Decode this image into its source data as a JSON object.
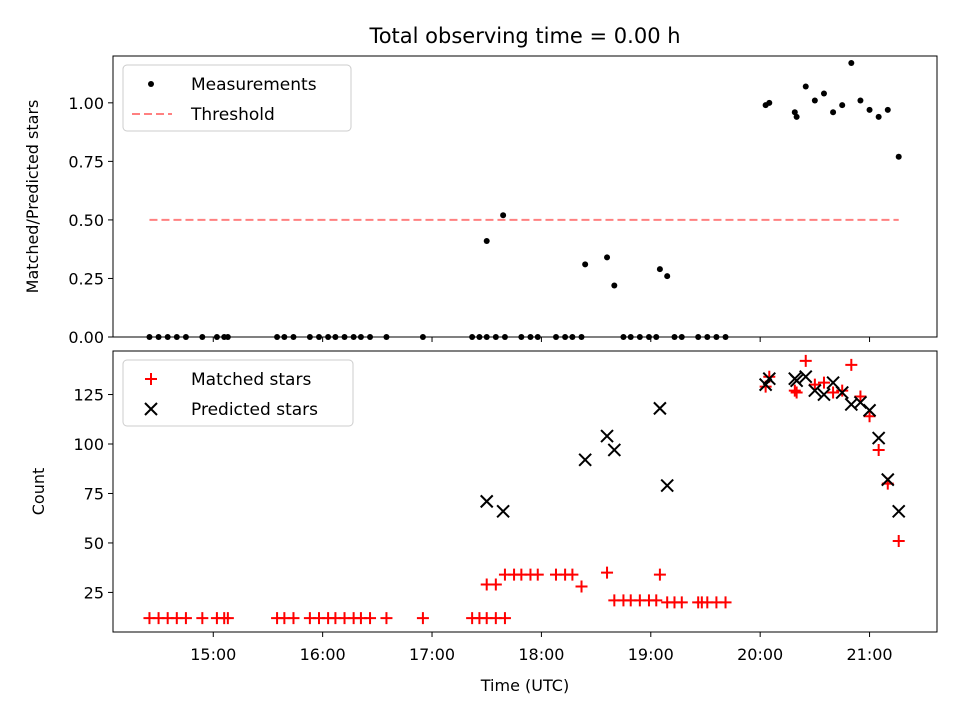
{
  "title": "Total observing time = 0.00 h",
  "chart_data": [
    {
      "type": "scatter",
      "ylabel": "Matched/Predicted stars",
      "ylim": [
        0,
        1.2
      ],
      "yticks": [
        0.0,
        0.25,
        0.5,
        0.75,
        1.0
      ],
      "yticklabels": [
        "0.00",
        "0.25",
        "0.50",
        "0.75",
        "1.00"
      ],
      "legend_position": "top-left",
      "series": [
        {
          "name": "Measurements",
          "marker": "dot",
          "color": "#000000",
          "points": [
            [
              "14:25",
              0
            ],
            [
              "14:30",
              0
            ],
            [
              "14:35",
              0
            ],
            [
              "14:40",
              0
            ],
            [
              "14:45",
              0
            ],
            [
              "14:54",
              0
            ],
            [
              "15:02",
              0
            ],
            [
              "15:06",
              0
            ],
            [
              "15:08",
              0
            ],
            [
              "15:35",
              0
            ],
            [
              "15:39",
              0
            ],
            [
              "15:44",
              0
            ],
            [
              "15:53",
              0
            ],
            [
              "15:58",
              0
            ],
            [
              "16:03",
              0
            ],
            [
              "16:07",
              0
            ],
            [
              "16:12",
              0
            ],
            [
              "16:17",
              0
            ],
            [
              "16:21",
              0
            ],
            [
              "16:26",
              0
            ],
            [
              "16:35",
              0
            ],
            [
              "16:55",
              0
            ],
            [
              "17:22",
              0
            ],
            [
              "17:26",
              0
            ],
            [
              "17:30",
              0
            ],
            [
              "17:35",
              0
            ],
            [
              "17:40",
              0
            ],
            [
              "17:49",
              0
            ],
            [
              "17:54",
              0
            ],
            [
              "17:58",
              0
            ],
            [
              "17:30",
              0.41
            ],
            [
              "17:39",
              0.52
            ],
            [
              "18:08",
              0
            ],
            [
              "18:13",
              0
            ],
            [
              "18:17",
              0
            ],
            [
              "18:22",
              0
            ],
            [
              "18:24",
              0.31
            ],
            [
              "18:36",
              0.34
            ],
            [
              "18:40",
              0.22
            ],
            [
              "18:45",
              0
            ],
            [
              "18:49",
              0
            ],
            [
              "18:54",
              0
            ],
            [
              "18:59",
              0
            ],
            [
              "19:03",
              0
            ],
            [
              "19:05",
              0.29
            ],
            [
              "19:09",
              0.26
            ],
            [
              "19:13",
              0
            ],
            [
              "19:17",
              0
            ],
            [
              "19:26",
              0
            ],
            [
              "19:31",
              0
            ],
            [
              "19:36",
              0
            ],
            [
              "19:41",
              0
            ],
            [
              "20:03",
              0.99
            ],
            [
              "20:05",
              1.0
            ],
            [
              "20:19",
              0.96
            ],
            [
              "20:20",
              0.94
            ],
            [
              "20:25",
              1.07
            ],
            [
              "20:30",
              1.01
            ],
            [
              "20:35",
              1.04
            ],
            [
              "20:40",
              0.96
            ],
            [
              "20:45",
              0.99
            ],
            [
              "20:50",
              1.17
            ],
            [
              "20:55",
              1.01
            ],
            [
              "21:00",
              0.97
            ],
            [
              "21:05",
              0.94
            ],
            [
              "21:10",
              0.97
            ],
            [
              "21:16",
              0.77
            ]
          ]
        },
        {
          "name": "Threshold",
          "marker": "dashed-line",
          "color": "#ff8080",
          "points": [
            [
              "14:25",
              0.5
            ],
            [
              "21:16",
              0.5
            ]
          ]
        }
      ]
    },
    {
      "type": "scatter",
      "ylabel": "Count",
      "xlabel": "Time (UTC)",
      "ylim": [
        5,
        147
      ],
      "yticks": [
        25,
        50,
        75,
        100,
        125
      ],
      "yticklabels": [
        "25",
        "50",
        "75",
        "100",
        "125"
      ],
      "xlim": [
        "14:05",
        "21:37"
      ],
      "xticks": [
        "15:00",
        "16:00",
        "17:00",
        "18:00",
        "19:00",
        "20:00",
        "21:00"
      ],
      "legend_position": "top-left",
      "series": [
        {
          "name": "Matched stars",
          "marker": "plus",
          "color": "#ff0000",
          "points": [
            [
              "14:25",
              12
            ],
            [
              "14:30",
              12
            ],
            [
              "14:35",
              12
            ],
            [
              "14:40",
              12
            ],
            [
              "14:45",
              12
            ],
            [
              "14:54",
              12
            ],
            [
              "15:02",
              12
            ],
            [
              "15:06",
              12
            ],
            [
              "15:08",
              12
            ],
            [
              "15:35",
              12
            ],
            [
              "15:39",
              12
            ],
            [
              "15:44",
              12
            ],
            [
              "15:53",
              12
            ],
            [
              "15:58",
              12
            ],
            [
              "16:03",
              12
            ],
            [
              "16:07",
              12
            ],
            [
              "16:12",
              12
            ],
            [
              "16:17",
              12
            ],
            [
              "16:21",
              12
            ],
            [
              "16:26",
              12
            ],
            [
              "16:35",
              12
            ],
            [
              "16:55",
              12
            ],
            [
              "17:22",
              12
            ],
            [
              "17:26",
              12
            ],
            [
              "17:30",
              12
            ],
            [
              "17:35",
              12
            ],
            [
              "17:40",
              12
            ],
            [
              "17:30",
              29
            ],
            [
              "17:35",
              29
            ],
            [
              "17:40",
              34
            ],
            [
              "17:45",
              34
            ],
            [
              "17:49",
              34
            ],
            [
              "17:54",
              34
            ],
            [
              "17:58",
              34
            ],
            [
              "18:08",
              34
            ],
            [
              "18:13",
              34
            ],
            [
              "18:17",
              34
            ],
            [
              "18:22",
              28
            ],
            [
              "18:36",
              35
            ],
            [
              "18:40",
              21
            ],
            [
              "18:45",
              21
            ],
            [
              "18:49",
              21
            ],
            [
              "18:54",
              21
            ],
            [
              "18:59",
              21
            ],
            [
              "19:03",
              21
            ],
            [
              "19:05",
              34
            ],
            [
              "19:09",
              20
            ],
            [
              "19:13",
              20
            ],
            [
              "19:17",
              20
            ],
            [
              "19:26",
              20
            ],
            [
              "19:28",
              20
            ],
            [
              "19:31",
              20
            ],
            [
              "19:36",
              20
            ],
            [
              "19:41",
              20
            ],
            [
              "20:03",
              129
            ],
            [
              "20:05",
              134
            ],
            [
              "20:19",
              127
            ],
            [
              "20:20",
              126
            ],
            [
              "20:25",
              142
            ],
            [
              "20:30",
              130
            ],
            [
              "20:35",
              131
            ],
            [
              "20:40",
              126
            ],
            [
              "20:45",
              127
            ],
            [
              "20:50",
              140
            ],
            [
              "20:55",
              124
            ],
            [
              "21:00",
              114
            ],
            [
              "21:05",
              97
            ],
            [
              "21:10",
              80
            ],
            [
              "21:16",
              51
            ]
          ]
        },
        {
          "name": "Predicted stars",
          "marker": "x",
          "color": "#000000",
          "points": [
            [
              "17:30",
              71
            ],
            [
              "17:39",
              66
            ],
            [
              "18:24",
              92
            ],
            [
              "18:36",
              104
            ],
            [
              "18:40",
              97
            ],
            [
              "19:05",
              118
            ],
            [
              "19:09",
              79
            ],
            [
              "20:03",
              130
            ],
            [
              "20:05",
              133
            ],
            [
              "20:19",
              133
            ],
            [
              "20:20",
              132
            ],
            [
              "20:25",
              134
            ],
            [
              "20:30",
              127
            ],
            [
              "20:35",
              125
            ],
            [
              "20:40",
              131
            ],
            [
              "20:45",
              126
            ],
            [
              "20:50",
              120
            ],
            [
              "20:55",
              121
            ],
            [
              "21:00",
              117
            ],
            [
              "21:05",
              103
            ],
            [
              "21:10",
              82
            ],
            [
              "21:16",
              66
            ]
          ]
        }
      ]
    }
  ]
}
